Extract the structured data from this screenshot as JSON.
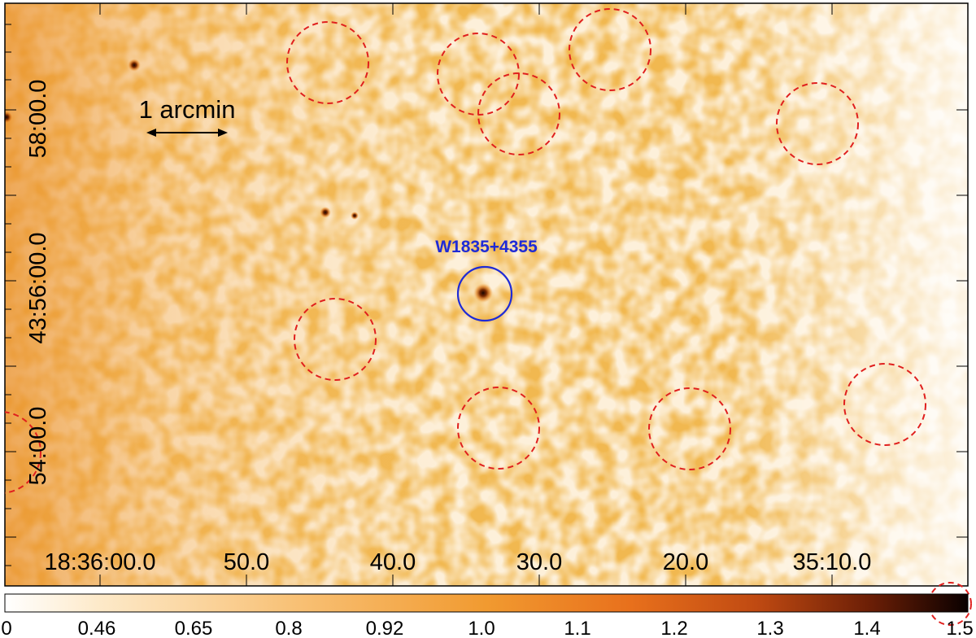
{
  "image": {
    "scale_bar_label": "1 arcmin",
    "source_label": "W1835+4355",
    "ra_ticks": [
      "18:36:00.0",
      "50.0",
      "40.0",
      "30.0",
      "20.0",
      "35:10.0"
    ],
    "dec_ticks": [
      "58:00.0",
      "43:56:00.0",
      "54:00.0"
    ],
    "dec_ticks_middle": "43:56:00.0"
  },
  "colorbar": {
    "ticks": [
      "0",
      "0.46",
      "0.65",
      "0.8",
      "0.92",
      "1.0",
      "1.1",
      "1.2",
      "1.3",
      "1.4",
      "1.5"
    ]
  },
  "colors": {
    "background_light": "#fdf0da",
    "emission_mid": "#f5b768",
    "emission_dark": "#e07a18",
    "source_core": "#2a0800",
    "dashed_circle": "#e0201e",
    "target_circle": "#1f2bd6",
    "target_label": "#1f2bd6"
  }
}
